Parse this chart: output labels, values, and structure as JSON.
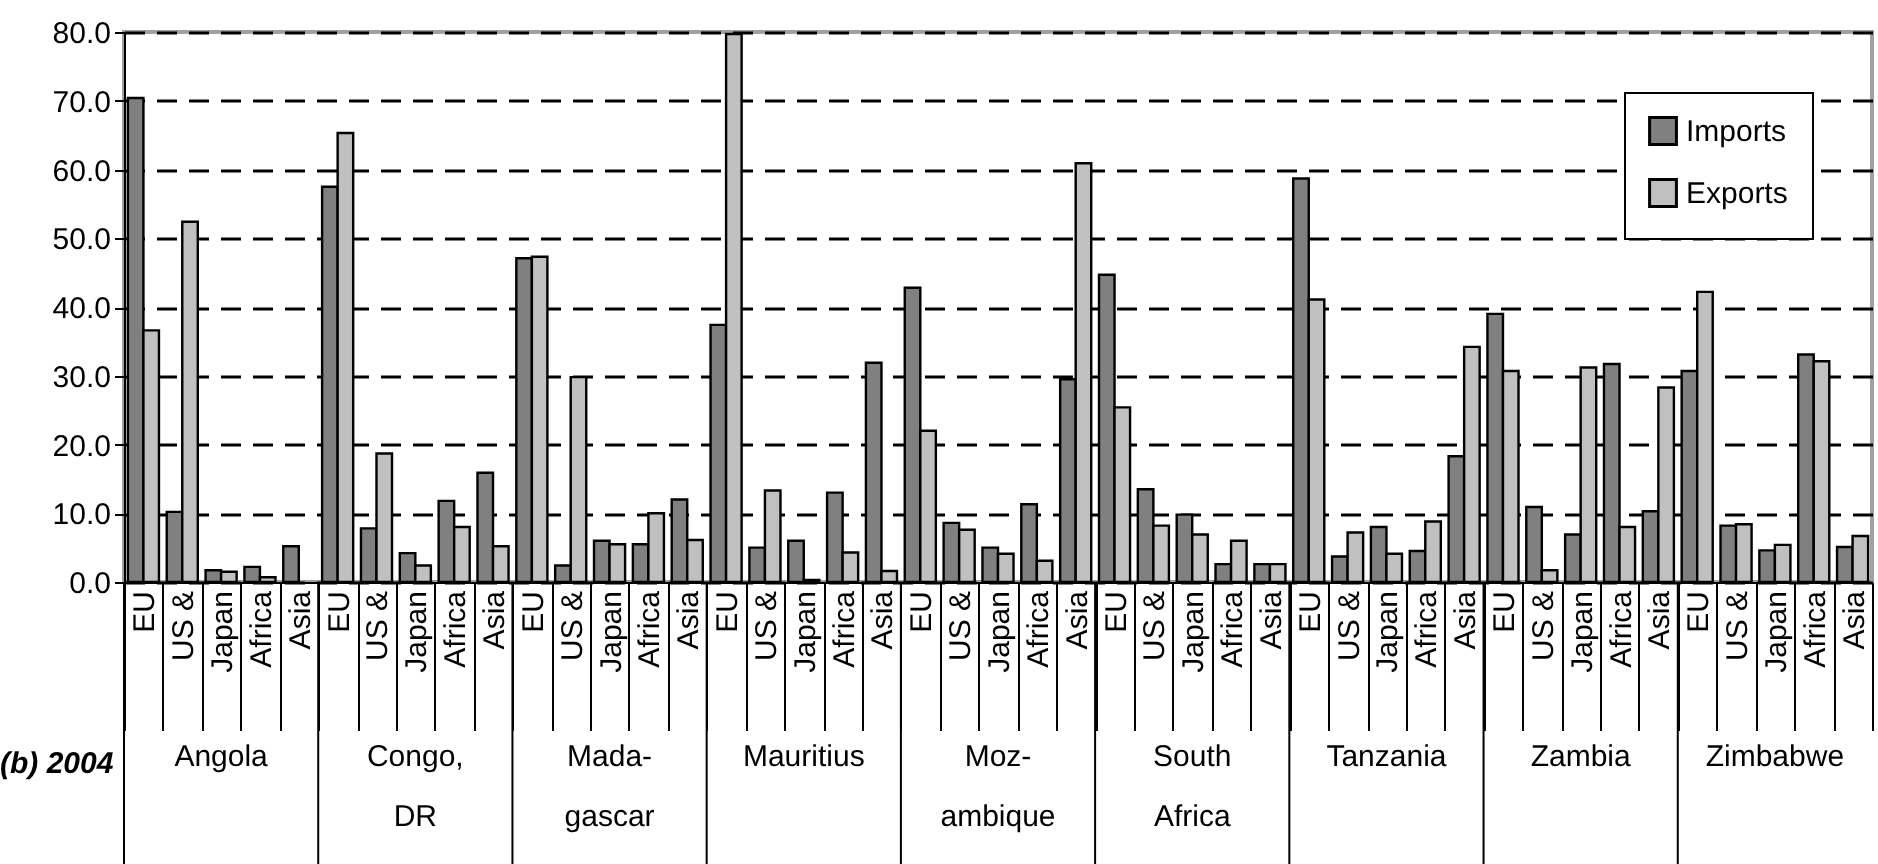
{
  "chart_data": {
    "type": "bar",
    "title": "(b) 2004",
    "categories": [
      "EU",
      "US &",
      "Japan",
      "Africa",
      "Asia",
      "EU",
      "US &",
      "Japan",
      "Africa",
      "Asia",
      "EU",
      "US &",
      "Japan",
      "Africa",
      "Asia",
      "EU",
      "US &",
      "Japan",
      "Africa",
      "Asia",
      "EU",
      "US &",
      "Japan",
      "Africa",
      "Asia",
      "EU",
      "US &",
      "Japan",
      "Africa",
      "Asia",
      "EU",
      "US &",
      "Japan",
      "Africa",
      "Asia",
      "EU",
      "US &",
      "Japan",
      "Africa",
      "Asia",
      "EU",
      "US &",
      "Japan",
      "Africa",
      "Asia"
    ],
    "annotations": [
      "Angola",
      "Congo,\nDR",
      "Mada-\ngascar",
      "Mauritius",
      "Moz-\nambique",
      "South\nAfrica",
      "Tanzania",
      "Zambia",
      "Zimbabwe"
    ],
    "series": [
      {
        "name": "Imports",
        "color": "#808080",
        "values": [
          70.4,
          10.2,
          1.7,
          2.2,
          5.2,
          57.5,
          7.8,
          4.2,
          11.8,
          15.9,
          47.1,
          2.4,
          6.0,
          5.5,
          12.0,
          37.4,
          5.0,
          6.0,
          13.0,
          31.9,
          42.8,
          8.6,
          5.0,
          11.3,
          29.5,
          44.7,
          13.5,
          9.8,
          2.6,
          2.6,
          58.7,
          3.7,
          8.0,
          4.5,
          18.3,
          39.0,
          10.9,
          6.9,
          31.7,
          10.3,
          30.7,
          8.2,
          4.6,
          33.1,
          5.1
        ]
      },
      {
        "name": "Exports",
        "color": "#c0c0c0",
        "values": [
          36.6,
          52.4,
          1.5,
          0.7,
          null,
          65.3,
          18.7,
          2.4,
          8.0,
          5.2,
          47.3,
          29.8,
          5.5,
          10.0,
          6.1,
          79.7,
          13.3,
          0.3,
          4.3,
          1.6,
          22.0,
          7.6,
          4.1,
          3.1,
          60.9,
          25.4,
          8.2,
          6.9,
          6.0,
          2.6,
          41.1,
          7.2,
          4.1,
          8.8,
          34.2,
          30.7,
          1.7,
          31.2,
          8.0,
          28.3,
          42.2,
          8.4,
          5.4,
          32.1,
          6.7
        ]
      }
    ],
    "ylim": [
      0,
      80
    ],
    "yticks": [
      {
        "value": 0,
        "label": "0.0"
      },
      {
        "value": 10,
        "label": "10.0"
      },
      {
        "value": 20,
        "label": "20.0"
      },
      {
        "value": 30,
        "label": "30.0"
      },
      {
        "value": 40,
        "label": "40.0"
      },
      {
        "value": 50,
        "label": "50.0"
      },
      {
        "value": 60,
        "label": "60.0"
      },
      {
        "value": 70,
        "label": "70.0"
      },
      {
        "value": 80,
        "label": "80.0"
      }
    ],
    "grid": "y",
    "legend": "top right"
  }
}
